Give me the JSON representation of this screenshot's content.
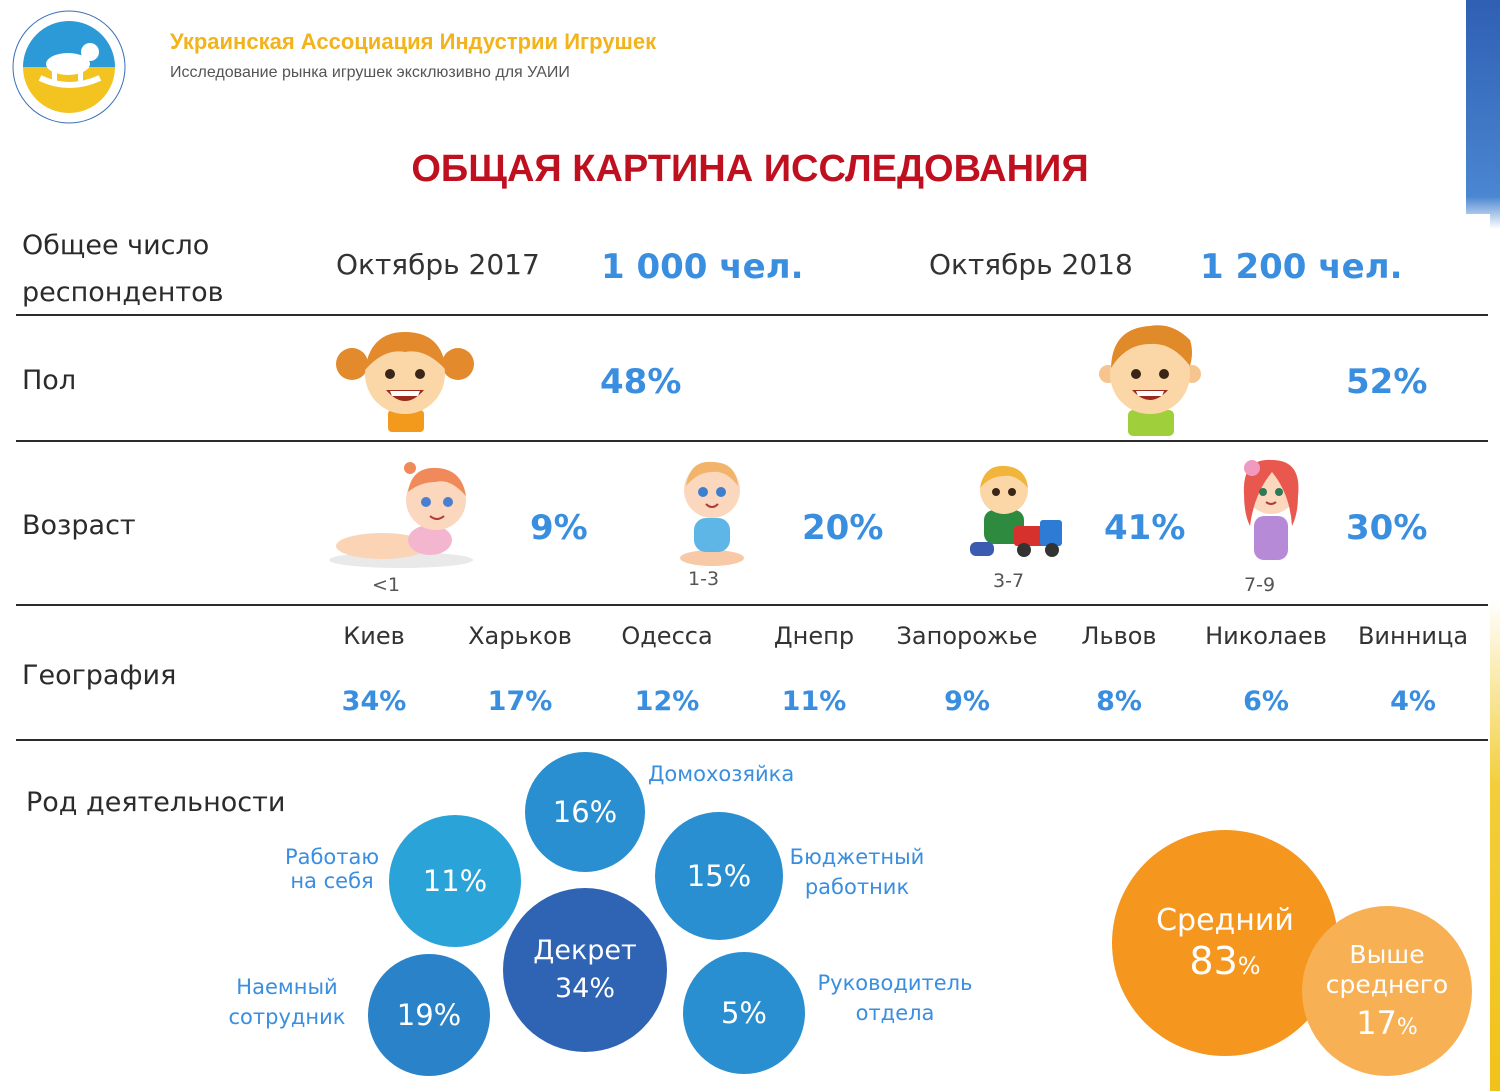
{
  "header": {
    "org_title": "Украинская Ассоциация Индустрии Игрушек",
    "org_subtitle": "Исследование рынка игрушек эксклюзивно для УАИИ"
  },
  "page_title": "ОБЩАЯ КАРТИНА ИССЛЕДОВАНИЯ",
  "respondents": {
    "label_line1": "Общее число",
    "label_line2": "респондентов",
    "periods": [
      {
        "month": "Октябрь 2017",
        "count": "1 000 чел."
      },
      {
        "month": "Октябрь 2018",
        "count": "1 200 чел."
      }
    ]
  },
  "gender": {
    "label": "Пол",
    "girls": "48%",
    "boys": "52%"
  },
  "age": {
    "label": "Возраст",
    "groups": [
      {
        "range": "<1",
        "value": "9%"
      },
      {
        "range": "1-3",
        "value": "20%"
      },
      {
        "range": "3-7",
        "value": "41%"
      },
      {
        "range": "7-9",
        "value": "30%"
      }
    ]
  },
  "geography": {
    "label": "География",
    "cities": [
      {
        "name": "Киев",
        "value": "34%"
      },
      {
        "name": "Харьков",
        "value": "17%"
      },
      {
        "name": "Одесса",
        "value": "12%"
      },
      {
        "name": "Днепр",
        "value": "11%"
      },
      {
        "name": "Запорожье",
        "value": "9%"
      },
      {
        "name": "Львов",
        "value": "8%"
      },
      {
        "name": "Николаев",
        "value": "6%"
      },
      {
        "name": "Винница",
        "value": "4%"
      }
    ]
  },
  "occupation": {
    "label": "Род деятельности",
    "items": {
      "housewife": {
        "value": "16%",
        "label": "Домохозяйка"
      },
      "self_employed": {
        "value": "11%",
        "label_line1": "Работаю",
        "label_line2": "на себя"
      },
      "budget": {
        "value": "15%",
        "label_line1": "Бюджетный",
        "label_line2": "работник"
      },
      "maternity": {
        "name": "Декрет",
        "value": "34%"
      },
      "employee": {
        "value": "19%",
        "label_line1": "Наемный",
        "label_line2": "сотрудник"
      },
      "manager": {
        "value": "5%",
        "label_line1": "Руководитель",
        "label_line2": "отдела"
      }
    }
  },
  "income": {
    "average": {
      "name": "Средний",
      "value": "83",
      "unit": "%"
    },
    "above": {
      "name_line1": "Выше",
      "name_line2": "среднего",
      "value": "17",
      "unit": "%"
    }
  },
  "colors": {
    "title_red": "#bf1020",
    "header_gold": "#f2b31b",
    "accent_blue": "#3a8ee0",
    "bubble_light": "#2aa3d8",
    "bubble_mid": "#2a82c8",
    "bubble_dark": "#2f63b3",
    "orange": "#f5961e",
    "orange_light": "#f7b053"
  }
}
